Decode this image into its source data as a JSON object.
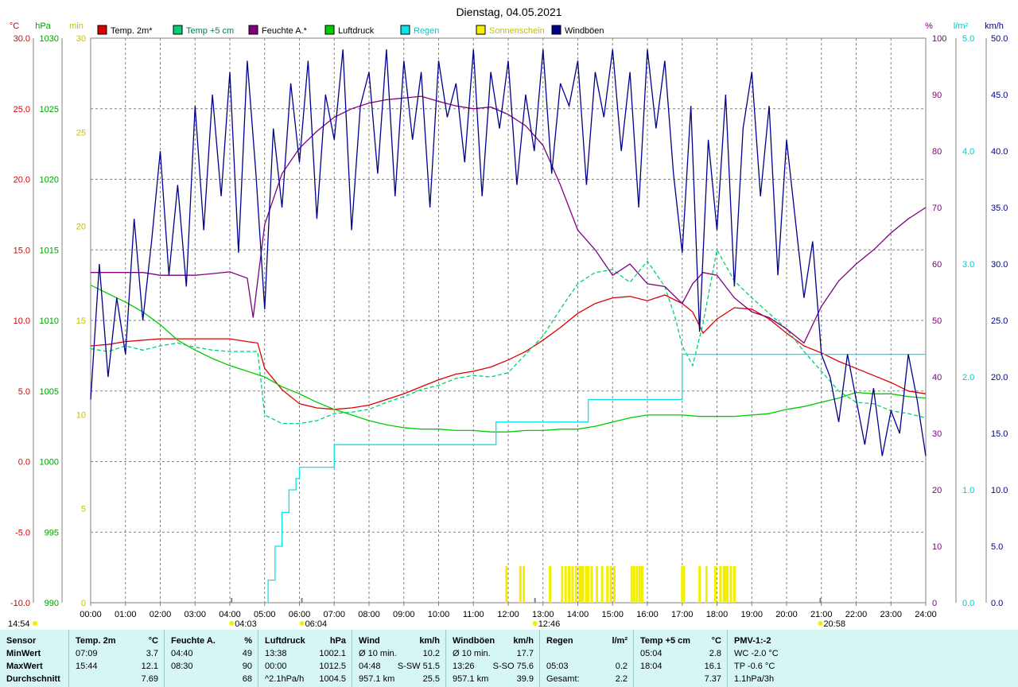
{
  "title": "Dienstag, 04.05.2021",
  "colors": {
    "temp2m": "#dd0000",
    "temp5cm": "#00d070",
    "humidity": "#800080",
    "pressure": "#00cc00",
    "rain": "#00e8e8",
    "sunshine": "#f4ee00",
    "gusts": "#00008b",
    "grid": "#808080"
  },
  "chart_data": {
    "type": "line",
    "title": "Dienstag, 04.05.2021",
    "x_range": [
      "00:00",
      "24:00"
    ],
    "grid": true,
    "legend_placement": "top",
    "legend": [
      {
        "label": "Temp. 2m*",
        "color_key": "temp2m"
      },
      {
        "label": "Temp +5 cm",
        "color_key": "temp5cm"
      },
      {
        "label": "Feuchte A.*",
        "color_key": "humidity"
      },
      {
        "label": "Luftdruck",
        "color_key": "pressure"
      },
      {
        "label": "Regen",
        "color_key": "rain"
      },
      {
        "label": "Sonnenschein",
        "color_key": "sunshine"
      },
      {
        "label": "Windböen",
        "color_key": "gusts"
      }
    ],
    "x_ticks": [
      "00:00",
      "01:00",
      "02:00",
      "03:00",
      "04:00",
      "05:00",
      "06:00",
      "07:00",
      "08:00",
      "09:00",
      "10:00",
      "11:00",
      "12:00",
      "13:00",
      "14:00",
      "15:00",
      "16:00",
      "17:00",
      "18:00",
      "19:00",
      "20:00",
      "21:00",
      "22:00",
      "23:00",
      "24:00"
    ],
    "axes": {
      "temp": {
        "unit": "°C",
        "range": [
          -10,
          30
        ],
        "ticks": [
          "30.0",
          "25.0",
          "20.0",
          "15.0",
          "10.0",
          "5.0",
          "0.0",
          "-5.0",
          "-10.0"
        ],
        "color_key": "temp2m"
      },
      "pressure": {
        "unit": "hPa",
        "range": [
          990,
          1030
        ],
        "ticks": [
          "1030",
          "1025",
          "1020",
          "1015",
          "1010",
          "1005",
          "1000",
          "995",
          "990"
        ],
        "color_key": "pressure"
      },
      "sun": {
        "unit": "min",
        "range": [
          0,
          30
        ],
        "ticks": [
          "30",
          "25",
          "20",
          "15",
          "10",
          "5",
          "0"
        ],
        "color_key": "sunshine"
      },
      "humidity": {
        "unit": "%",
        "range": [
          0,
          100
        ],
        "ticks": [
          "100",
          "90",
          "80",
          "70",
          "60",
          "50",
          "40",
          "30",
          "20",
          "10",
          "0"
        ],
        "color_key": "humidity"
      },
      "rain": {
        "unit": "l/m²",
        "range": [
          0,
          5
        ],
        "ticks": [
          "5.0",
          "4.0",
          "3.0",
          "2.0",
          "1.0",
          "0.0"
        ],
        "color_key": "rain"
      },
      "wind": {
        "unit": "km/h",
        "range": [
          0,
          50
        ],
        "ticks": [
          "50.0",
          "45.0",
          "40.0",
          "35.0",
          "30.0",
          "25.0",
          "20.0",
          "15.0",
          "10.0",
          "5.0",
          "0.0"
        ],
        "color_key": "gusts"
      }
    },
    "series": [
      {
        "name": "Temp. 2m*",
        "axis": "temp",
        "color_key": "temp2m",
        "x": [
          0,
          0.5,
          1,
          1.5,
          2,
          2.5,
          3,
          3.5,
          4,
          4.5,
          4.8,
          5,
          5.5,
          6,
          6.5,
          7,
          7.5,
          8,
          8.5,
          9,
          9.5,
          10,
          10.5,
          11,
          11.5,
          12,
          12.5,
          13,
          13.5,
          14,
          14.5,
          15,
          15.5,
          16,
          16.5,
          17,
          17.3,
          17.6,
          18,
          18.5,
          19,
          19.5,
          20,
          20.5,
          21,
          21.5,
          22,
          22.5,
          23,
          23.5,
          24
        ],
        "y": [
          8.2,
          8.3,
          8.5,
          8.6,
          8.7,
          8.7,
          8.7,
          8.7,
          8.7,
          8.5,
          8.4,
          6.6,
          5.1,
          4.1,
          3.8,
          3.7,
          3.8,
          4.0,
          4.4,
          4.8,
          5.3,
          5.8,
          6.2,
          6.4,
          6.7,
          7.2,
          7.8,
          8.6,
          9.5,
          10.5,
          11.2,
          11.6,
          11.7,
          11.4,
          11.8,
          11.2,
          10.6,
          9.1,
          10.1,
          10.9,
          10.8,
          10.1,
          9.1,
          8.2,
          7.7,
          7.1,
          6.6,
          6.1,
          5.6,
          5.0,
          4.8
        ]
      },
      {
        "name": "Temp +5 cm",
        "axis": "temp",
        "color_key": "temp5cm",
        "x": [
          0,
          0.5,
          1,
          1.5,
          2,
          2.5,
          3,
          3.5,
          4,
          4.5,
          4.8,
          5,
          5.5,
          6,
          6.5,
          7,
          7.5,
          8,
          8.5,
          9,
          9.5,
          10,
          10.5,
          11,
          11.5,
          12,
          12.5,
          13,
          13.5,
          14,
          14.5,
          15,
          15.5,
          16,
          16.5,
          16.8,
          17,
          17.3,
          17.6,
          18,
          18.5,
          19,
          19.5,
          20,
          20.5,
          21,
          21.5,
          22,
          22.5,
          23,
          23.5,
          24
        ],
        "y": [
          8.0,
          7.8,
          8.2,
          7.9,
          8.2,
          8.4,
          8.1,
          7.9,
          7.8,
          7.8,
          7.8,
          3.3,
          2.7,
          2.7,
          2.9,
          3.4,
          3.5,
          3.7,
          4.2,
          4.6,
          5.1,
          5.4,
          5.9,
          6.1,
          6.0,
          6.3,
          7.6,
          8.9,
          10.8,
          12.6,
          13.4,
          13.6,
          12.7,
          14.2,
          12.4,
          10.2,
          8.2,
          6.8,
          9.8,
          15.0,
          12.8,
          11.6,
          10.5,
          9.4,
          7.8,
          6.4,
          5.0,
          4.2,
          4.1,
          3.6,
          3.4,
          3.1
        ]
      },
      {
        "name": "Feuchte A.*",
        "axis": "humidity",
        "color_key": "humidity",
        "x": [
          0,
          0.5,
          1,
          1.5,
          2,
          2.5,
          3,
          3.5,
          4,
          4.5,
          4.67,
          5,
          5.5,
          6,
          6.5,
          7,
          7.5,
          8,
          8.5,
          9,
          9.5,
          10,
          10.5,
          11,
          11.5,
          12,
          12.5,
          13,
          13.5,
          14,
          14.5,
          15,
          15.5,
          16,
          16.5,
          17,
          17.3,
          17.6,
          18,
          18.5,
          19,
          19.5,
          20,
          20.5,
          21,
          21.5,
          22,
          22.5,
          23,
          23.5,
          24
        ],
        "y": [
          58.5,
          58.5,
          58.5,
          58.5,
          58.0,
          58.0,
          58.0,
          58.3,
          58.6,
          57.5,
          50.5,
          67,
          76,
          80.5,
          83.5,
          86,
          87.5,
          88.5,
          89.1,
          89.4,
          89.7,
          88.8,
          88.0,
          87.5,
          87.8,
          86.5,
          84.5,
          81,
          74,
          66,
          62.5,
          58,
          60,
          56.5,
          56,
          53,
          56.5,
          58.5,
          58,
          54,
          51.5,
          50.5,
          48.5,
          46,
          52.5,
          57,
          60,
          62.5,
          65.5,
          68,
          70
        ]
      },
      {
        "name": "Luftdruck",
        "axis": "pressure",
        "color_key": "pressure",
        "x": [
          0,
          0.5,
          1,
          1.5,
          2,
          2.5,
          3,
          3.5,
          4,
          4.5,
          5,
          5.5,
          6,
          6.5,
          7,
          7.5,
          8,
          8.5,
          9,
          9.5,
          10,
          10.5,
          11,
          11.5,
          12,
          12.5,
          13,
          13.5,
          14,
          14.5,
          15,
          15.5,
          16,
          16.5,
          17,
          17.5,
          18,
          18.5,
          19,
          19.5,
          20,
          20.5,
          21,
          21.5,
          22,
          22.5,
          23,
          23.5,
          24
        ],
        "y": [
          1012.5,
          1011.9,
          1011.3,
          1010.6,
          1009.7,
          1008.6,
          1007.9,
          1007.3,
          1006.8,
          1006.4,
          1006.0,
          1005.3,
          1004.8,
          1004.2,
          1003.7,
          1003.3,
          1002.9,
          1002.6,
          1002.4,
          1002.3,
          1002.3,
          1002.2,
          1002.2,
          1002.1,
          1002.1,
          1002.2,
          1002.2,
          1002.3,
          1002.3,
          1002.5,
          1002.8,
          1003.1,
          1003.3,
          1003.3,
          1003.3,
          1003.2,
          1003.2,
          1003.2,
          1003.3,
          1003.4,
          1003.7,
          1003.9,
          1004.2,
          1004.5,
          1004.9,
          1004.8,
          1004.8,
          1004.6,
          1004.5
        ]
      },
      {
        "name": "Regen",
        "axis": "rain",
        "color_key": "rain",
        "x": [
          5.1,
          5.3,
          5.5,
          5.7,
          5.9,
          6.0,
          6.3,
          6.6,
          6.8,
          7.0,
          7.5,
          8,
          8.5,
          9,
          9.5,
          10,
          10.5,
          11,
          11.5,
          11.65,
          12,
          12.5,
          13,
          13.5,
          14,
          14.3,
          14.5,
          15,
          15.5,
          16,
          16.5,
          17,
          17.5,
          18,
          18.5,
          19,
          19.5,
          20,
          20.5,
          21,
          21.5,
          22,
          22.5,
          23,
          23.5,
          24
        ],
        "y": [
          0.2,
          0.5,
          0.8,
          1.0,
          1.1,
          1.2,
          1.2,
          1.2,
          1.2,
          1.4,
          1.4,
          1.4,
          1.4,
          1.4,
          1.4,
          1.4,
          1.4,
          1.4,
          1.4,
          1.6,
          1.6,
          1.6,
          1.6,
          1.6,
          1.6,
          1.8,
          1.8,
          1.8,
          1.8,
          1.8,
          1.8,
          2.2,
          2.2,
          2.2,
          2.2,
          2.2,
          2.2,
          2.2,
          2.2,
          2.2,
          2.2,
          2.2,
          2.2,
          2.2,
          2.2,
          2.2
        ]
      },
      {
        "name": "Windböen",
        "axis": "wind",
        "color_key": "gusts",
        "x": [
          0,
          0.25,
          0.5,
          0.75,
          1,
          1.25,
          1.5,
          1.75,
          2,
          2.25,
          2.5,
          2.75,
          3,
          3.25,
          3.5,
          3.75,
          4,
          4.25,
          4.5,
          4.75,
          5,
          5.25,
          5.5,
          5.75,
          6,
          6.25,
          6.5,
          6.75,
          7,
          7.25,
          7.5,
          7.75,
          8,
          8.25,
          8.5,
          8.75,
          9,
          9.25,
          9.5,
          9.75,
          10,
          10.25,
          10.5,
          10.75,
          11,
          11.25,
          11.5,
          11.75,
          12,
          12.25,
          12.5,
          12.75,
          13,
          13.25,
          13.5,
          13.75,
          14,
          14.25,
          14.5,
          14.75,
          15,
          15.25,
          15.5,
          15.75,
          16,
          16.25,
          16.5,
          16.75,
          17,
          17.25,
          17.5,
          17.75,
          18,
          18.25,
          18.5,
          18.75,
          19,
          19.25,
          19.5,
          19.75,
          20,
          20.25,
          20.5,
          20.75,
          21,
          21.25,
          21.5,
          21.75,
          22,
          22.25,
          22.5,
          22.75,
          23,
          23.25,
          23.5,
          23.75,
          24
        ],
        "y": [
          18,
          30,
          20,
          27,
          22,
          34,
          25,
          32,
          40,
          29,
          37,
          28,
          44,
          33,
          45,
          36,
          47,
          31,
          48,
          38,
          26,
          42,
          35,
          46,
          39,
          48,
          34,
          45,
          41,
          49,
          33,
          44,
          47,
          38,
          49,
          36,
          48,
          41,
          47,
          35,
          48,
          43,
          46,
          39,
          49,
          36,
          47,
          42,
          48,
          37,
          45,
          40,
          49,
          38,
          46,
          44,
          48,
          37,
          47,
          43,
          49,
          40,
          47,
          35,
          49,
          42,
          48,
          38,
          31,
          44,
          24,
          41,
          33,
          45,
          28,
          42,
          47,
          36,
          44,
          29,
          41,
          34,
          27,
          32,
          22,
          20,
          16,
          22,
          18,
          14,
          19,
          13,
          17,
          15,
          22,
          18,
          13
        ]
      },
      {
        "name": "Sonnenschein",
        "axis": "sun",
        "color_key": "sunshine",
        "x": [
          11.95,
          12.35,
          12.45,
          13.2,
          13.55,
          13.65,
          13.75,
          13.85,
          13.95,
          14.05,
          14.1,
          14.15,
          14.25,
          14.3,
          14.4,
          14.55,
          14.7,
          14.85,
          14.95,
          15.05,
          15.55,
          15.62,
          15.7,
          15.78,
          15.85,
          17.0,
          17.05,
          17.5,
          17.7,
          17.95,
          18.1,
          18.2,
          18.25,
          18.3,
          18.4,
          18.5
        ],
        "y": [
          2,
          2,
          2,
          2,
          2,
          2,
          2,
          2,
          2,
          2,
          2,
          2,
          2,
          2,
          2,
          2,
          2,
          2,
          2,
          2,
          2,
          2,
          2,
          2,
          2,
          2,
          2,
          2,
          2,
          2,
          2,
          2,
          2,
          2,
          2,
          2
        ]
      }
    ],
    "markers": [
      {
        "label": "04:03",
        "x": 4.05,
        "color_key": "sunshine"
      },
      {
        "label": "06:04",
        "x": 6.07,
        "color_key": "sunshine"
      },
      {
        "label": "12:46",
        "x": 12.77,
        "color_key": "sunshine"
      },
      {
        "label": "20:58",
        "x": 20.97,
        "color_key": "sunshine"
      }
    ],
    "corner_time": "14:54"
  },
  "footer": {
    "columns": [
      {
        "head": [
          "Sensor"
        ],
        "rows": [
          [
            "MinWert"
          ],
          [
            "MaxWert"
          ],
          [
            "Durchschnitt"
          ]
        ]
      },
      {
        "head": [
          "Temp. 2m",
          "°C"
        ],
        "rows": [
          [
            "07:09",
            "3.7"
          ],
          [
            "15:44",
            "12.1"
          ],
          [
            "",
            "7.69"
          ]
        ]
      },
      {
        "head": [
          "Feuchte A.",
          "%"
        ],
        "rows": [
          [
            "04:40",
            "49"
          ],
          [
            "08:30",
            "90"
          ],
          [
            "",
            "68"
          ]
        ]
      },
      {
        "head": [
          "Luftdruck",
          "hPa"
        ],
        "rows": [
          [
            "13:38",
            "1002.1"
          ],
          [
            "00:00",
            "1012.5"
          ],
          [
            "^2.1hPa/h",
            "1004.5"
          ]
        ]
      },
      {
        "head": [
          "Wind",
          "km/h"
        ],
        "rows": [
          [
            "Ø 10 min.",
            "10.2"
          ],
          [
            "04:48",
            "S-SW 51.5"
          ],
          [
            "957.1 km",
            "25.5"
          ]
        ]
      },
      {
        "head": [
          "Windböen",
          "km/h"
        ],
        "rows": [
          [
            "Ø 10 min.",
            "17.7"
          ],
          [
            "13:26",
            "S-SO 75.6"
          ],
          [
            "957.1 km",
            "39.9"
          ]
        ]
      },
      {
        "head": [
          "Regen",
          "l/m²"
        ],
        "rows": [
          [
            "",
            ""
          ],
          [
            "05:03",
            "0.2"
          ],
          [
            "Gesamt:",
            "2.2"
          ]
        ]
      },
      {
        "head": [
          "Temp +5 cm",
          "°C"
        ],
        "rows": [
          [
            "05:04",
            "2.8"
          ],
          [
            "18:04",
            "16.1"
          ],
          [
            "",
            "7.37"
          ]
        ]
      },
      {
        "head": [
          "PMV-1:-2"
        ],
        "rows": [
          [
            "WC -2.0 °C"
          ],
          [
            "TP -0.6 °C"
          ],
          [
            "1.1hPa/3h"
          ]
        ]
      }
    ]
  }
}
